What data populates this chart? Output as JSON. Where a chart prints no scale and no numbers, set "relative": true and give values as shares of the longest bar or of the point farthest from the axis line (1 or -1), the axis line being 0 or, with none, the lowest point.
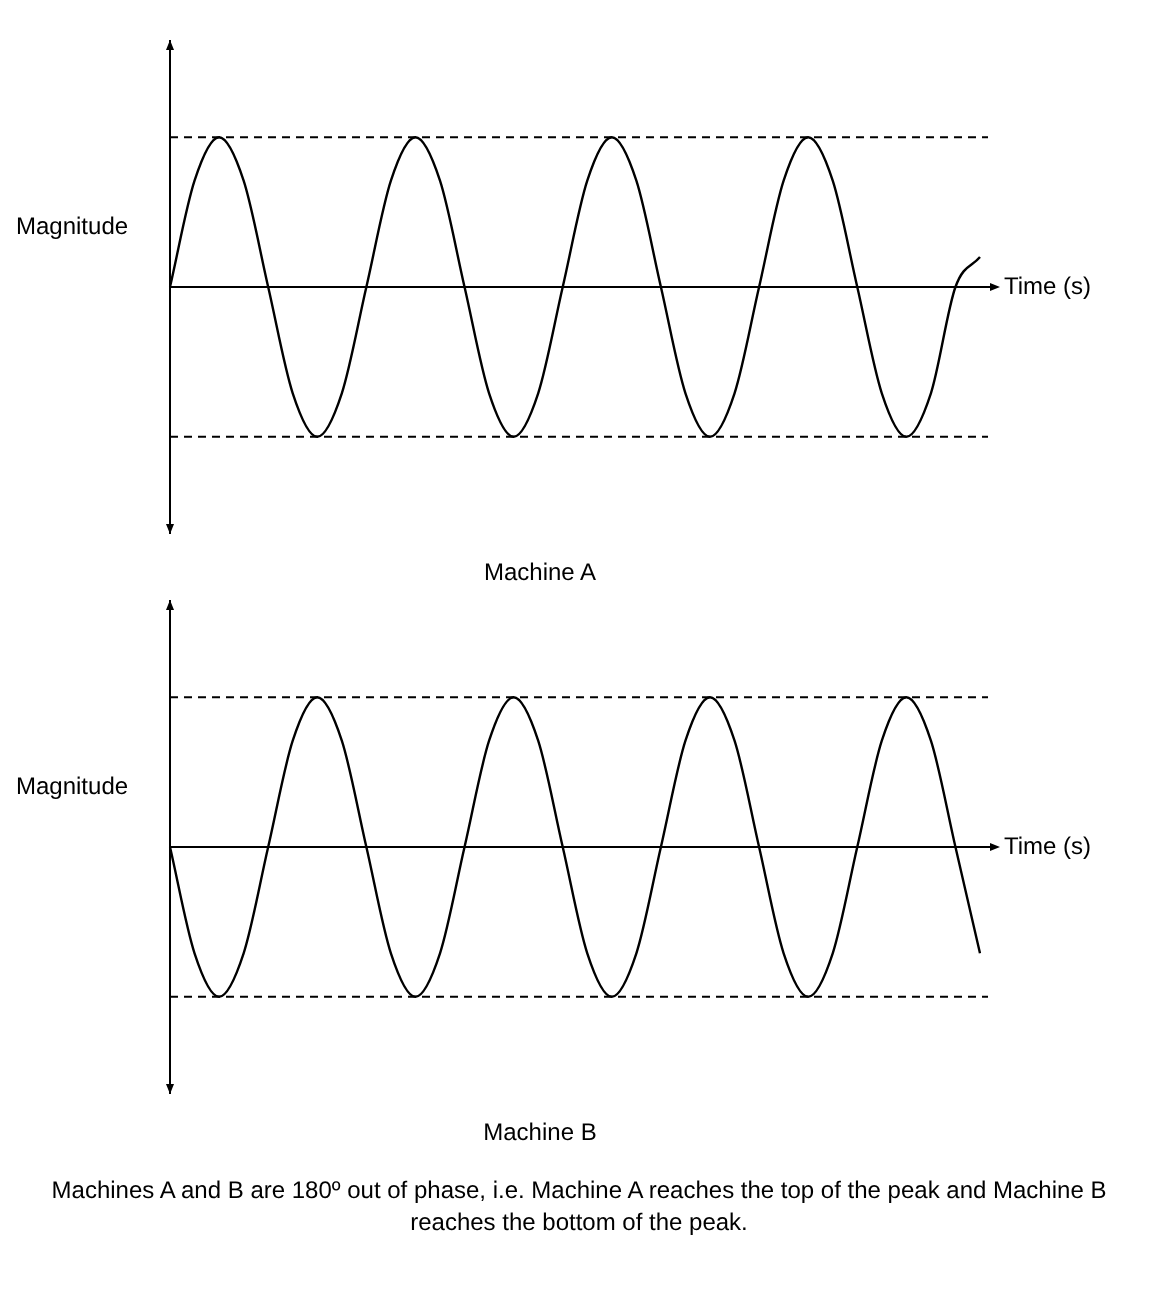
{
  "chart_data": [
    {
      "type": "line",
      "relative": true,
      "title": "Machine A",
      "xlabel": "Time (s)",
      "ylabel": "Magnitude",
      "categories": [
        null,
        null,
        null,
        null,
        null,
        null,
        null,
        null,
        null,
        null,
        null,
        null,
        null,
        null,
        null,
        null,
        null,
        null,
        null,
        null,
        null,
        null,
        null,
        null,
        null,
        null,
        null,
        null,
        null,
        null,
        null,
        null,
        null,
        null
      ],
      "color": "#000000",
      "values": [
        0,
        0.71,
        1,
        0.71,
        0,
        -0.71,
        -1,
        -0.71,
        0,
        0.71,
        1,
        0.71,
        0,
        -0.71,
        -1,
        -0.71,
        0,
        0.71,
        1,
        0.71,
        0,
        -0.71,
        -1,
        -0.71,
        0,
        0.71,
        1,
        0.71,
        0,
        -0.71,
        -1,
        -0.71,
        0,
        0.2
      ],
      "ref_lines": [
        {
          "axis": "y",
          "value": 1,
          "line_style": "dashed"
        },
        {
          "axis": "y",
          "value": -1,
          "line_style": "dashed"
        }
      ]
    },
    {
      "type": "line",
      "relative": true,
      "title": "Machine B",
      "xlabel": "Time (s)",
      "ylabel": "Magnitude",
      "categories": [
        null,
        null,
        null,
        null,
        null,
        null,
        null,
        null,
        null,
        null,
        null,
        null,
        null,
        null,
        null,
        null,
        null,
        null,
        null,
        null,
        null,
        null,
        null,
        null,
        null,
        null,
        null,
        null,
        null,
        null,
        null,
        null,
        null,
        null
      ],
      "color": "#000000",
      "values": [
        0,
        -0.71,
        -1,
        -0.71,
        0,
        0.71,
        1,
        0.71,
        0,
        -0.71,
        -1,
        -0.71,
        0,
        0.71,
        1,
        0.71,
        0,
        -0.71,
        -1,
        -0.71,
        0,
        0.71,
        1,
        0.71,
        0,
        -0.71,
        -1,
        -0.71,
        0,
        0.71,
        1,
        0.71,
        0,
        -0.71
      ],
      "ref_lines": [
        {
          "axis": "y",
          "value": 1,
          "line_style": "dashed"
        },
        {
          "axis": "y",
          "value": -1,
          "line_style": "dashed"
        }
      ],
      "annotations": [
        "Machines A and B are 180º out of phase, i.e. Machine A reaches the top of the peak and Machine B reaches the bottom of the peak."
      ]
    }
  ]
}
